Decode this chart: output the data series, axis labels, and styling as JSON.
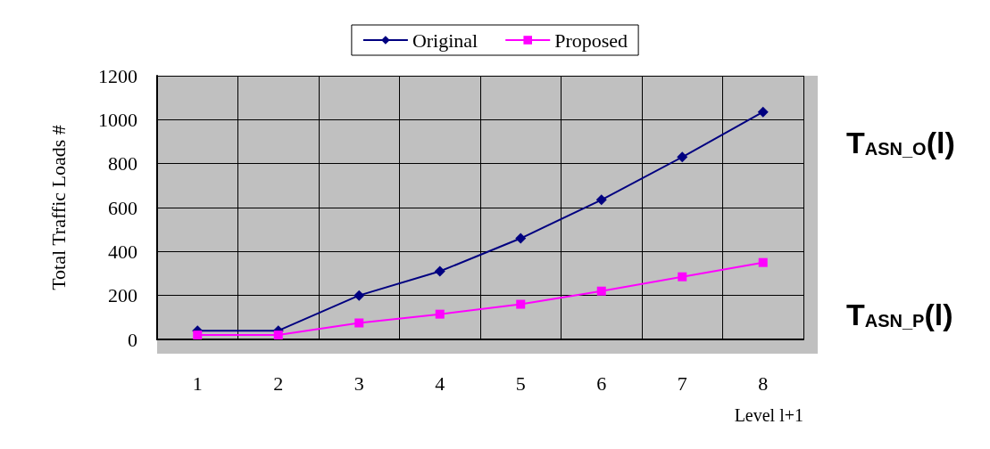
{
  "chart_data": {
    "type": "line",
    "ylabel": "Total Traffic Loads #",
    "xlabel": "Level l+1",
    "categories": [
      "1",
      "2",
      "3",
      "4",
      "5",
      "6",
      "7",
      "8"
    ],
    "series": [
      {
        "name": "Original",
        "color": "#000080",
        "marker": "diamond",
        "values": [
          40,
          40,
          200,
          310,
          460,
          635,
          830,
          1035
        ]
      },
      {
        "name": "Proposed",
        "color": "#ff00ff",
        "marker": "square",
        "values": [
          20,
          20,
          75,
          115,
          160,
          220,
          285,
          350
        ]
      }
    ],
    "ylim": [
      0,
      1200
    ],
    "yticks": [
      0,
      200,
      400,
      600,
      800,
      1000,
      1200
    ],
    "grid": true,
    "legend": "top",
    "annotations": [
      "T$_{ASN_O}$(l)",
      "T$_{ASN_P}$(l)"
    ]
  }
}
